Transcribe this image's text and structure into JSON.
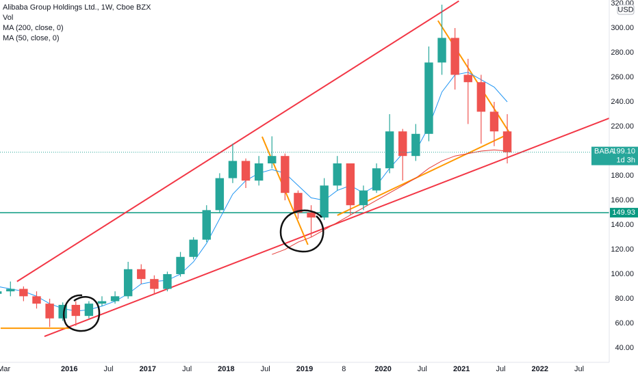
{
  "chart_data": {
    "type": "candlestick",
    "title": "Alibaba Group Holdings Ltd., 1W, Cboe BZX",
    "indicators": [
      "Vol",
      "MA (200, close, 0)",
      "MA (50, close, 0)"
    ],
    "currency": "USD",
    "x": [
      1,
      3,
      5,
      7,
      9,
      11,
      13,
      15,
      17,
      19,
      21,
      23,
      25,
      27,
      29,
      31,
      33,
      35,
      37,
      39,
      41,
      43,
      45,
      47,
      49,
      51,
      53,
      55,
      57,
      59,
      61,
      63,
      65,
      67,
      69,
      71,
      73,
      75,
      77,
      79
    ],
    "open": [
      84,
      86,
      88,
      82,
      76,
      64,
      75,
      66,
      76,
      78,
      82,
      104,
      96,
      88,
      100,
      114,
      128,
      152,
      178,
      192,
      176,
      190,
      196,
      166,
      150,
      146,
      172,
      190,
      156,
      168,
      186,
      216,
      196,
      214,
      272,
      292,
      262,
      256,
      232,
      216
    ],
    "high": [
      92,
      94,
      90,
      86,
      80,
      77,
      78,
      78,
      82,
      86,
      110,
      108,
      99,
      102,
      118,
      130,
      156,
      182,
      206,
      194,
      196,
      212,
      198,
      168,
      156,
      178,
      196,
      190,
      172,
      190,
      230,
      218,
      222,
      285,
      319,
      300,
      275,
      262,
      240,
      230
    ],
    "low": [
      80,
      82,
      78,
      72,
      57,
      62,
      58,
      64,
      74,
      76,
      80,
      92,
      84,
      86,
      98,
      112,
      126,
      150,
      174,
      170,
      172,
      186,
      160,
      145,
      130,
      144,
      168,
      148,
      152,
      166,
      182,
      176,
      192,
      208,
      262,
      250,
      222,
      206,
      204,
      190
    ],
    "close": [
      86,
      88,
      82,
      76,
      64,
      75,
      66,
      76,
      78,
      82,
      104,
      96,
      88,
      100,
      114,
      128,
      152,
      178,
      192,
      176,
      190,
      196,
      166,
      150,
      146,
      172,
      190,
      156,
      168,
      186,
      216,
      196,
      214,
      272,
      292,
      262,
      256,
      232,
      216,
      199
    ],
    "up_color": "#26a69a",
    "down_color": "#ef5350",
    "series": [
      {
        "name": "MA (50, close, 0)",
        "color": "#2196f3",
        "values": [
          90,
          88,
          86,
          82,
          76,
          72,
          70,
          71,
          74,
          78,
          84,
          92,
          94,
          95,
          100,
          110,
          125,
          145,
          165,
          176,
          182,
          185,
          182,
          172,
          162,
          160,
          168,
          172,
          166,
          172,
          186,
          198,
          200,
          220,
          248,
          262,
          264,
          258,
          252,
          240
        ]
      },
      {
        "name": "MA (200, close, 0)",
        "color": "#e53935",
        "values": [
          null,
          null,
          null,
          null,
          null,
          null,
          null,
          null,
          null,
          null,
          null,
          null,
          null,
          null,
          null,
          null,
          null,
          null,
          null,
          null,
          null,
          116,
          120,
          126,
          130,
          136,
          142,
          148,
          154,
          160,
          166,
          172,
          178,
          186,
          192,
          196,
          198,
          200,
          201,
          200
        ]
      }
    ],
    "drawings": [
      {
        "x": [
          4,
          71.6
        ],
        "y": [
          94,
          322
        ],
        "color": "#f23645"
      },
      {
        "x": [
          8.2,
          94.6
        ],
        "y": [
          49.4,
          226.7
        ],
        "color": "#f23645"
      },
      {
        "x": [
          41.5,
          48.5
        ],
        "y": [
          211.7,
          123.9
        ],
        "color": "#ff9800"
      },
      {
        "x": [
          68.4,
          79.4
        ],
        "y": [
          306,
          214.4
        ],
        "color": "#ff9800"
      },
      {
        "x": [
          53,
          79.4
        ],
        "y": [
          147.8,
          214.4
        ],
        "color": "#ff9800"
      },
      {
        "x": [
          1.5,
          12
        ],
        "y": [
          56,
          56
        ],
        "color": "#ff9800"
      }
    ],
    "hline": {
      "value": 149.93,
      "color": "#089981"
    },
    "last_price": {
      "symbol": "BABA",
      "price": {
        "value": 199.1,
        "label": "199.10"
      },
      "countdown": "1d 3h"
    },
    "xlim": [
      1.4,
      94.6
    ],
    "ylim": [
      28.3,
      322.8
    ],
    "xticks": [
      {
        "value": 2,
        "label": "Mar"
      },
      {
        "value": 12,
        "label": "2016"
      },
      {
        "value": 18,
        "label": "Jul"
      },
      {
        "value": 24,
        "label": "2017"
      },
      {
        "value": 30,
        "label": "Jul"
      },
      {
        "value": 36,
        "label": "2018"
      },
      {
        "value": 42,
        "label": "Jul"
      },
      {
        "value": 48,
        "label": "2019"
      },
      {
        "value": 54,
        "label": "8"
      },
      {
        "value": 60,
        "label": "2020"
      },
      {
        "value": 66,
        "label": "Jul"
      },
      {
        "value": 72,
        "label": "2021"
      },
      {
        "value": 78,
        "label": "Jul"
      },
      {
        "value": 84,
        "label": "2022"
      },
      {
        "value": 90,
        "label": "Jul"
      }
    ],
    "yticks": [
      {
        "value": 40,
        "label": "40.00"
      },
      {
        "value": 60,
        "label": "60.00"
      },
      {
        "value": 80,
        "label": "80.00"
      },
      {
        "value": 100,
        "label": "100.00"
      },
      {
        "value": 120,
        "label": "120.00"
      },
      {
        "value": 140,
        "label": "140.00"
      },
      {
        "value": 160,
        "label": "160.00"
      },
      {
        "value": 180,
        "label": "180.00"
      },
      {
        "value": 200,
        "label": "200.00"
      },
      {
        "value": 220,
        "label": "220.00"
      },
      {
        "value": 240,
        "label": "240.00"
      },
      {
        "value": 260,
        "label": "260.00"
      },
      {
        "value": 280,
        "label": "280.00"
      },
      {
        "value": 300,
        "label": "300.00"
      },
      {
        "value": 320,
        "label": "320.00"
      }
    ],
    "grid": true
  }
}
